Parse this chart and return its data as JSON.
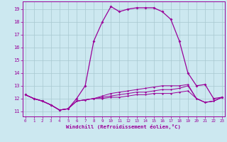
{
  "xlabel": "Windchill (Refroidissement éolien,°C)",
  "bg_color": "#cce8f0",
  "grid_color": "#a8c8d0",
  "line_color": "#990099",
  "x_ticks": [
    0,
    1,
    2,
    3,
    4,
    5,
    6,
    7,
    8,
    9,
    10,
    11,
    12,
    13,
    14,
    15,
    16,
    17,
    18,
    19,
    20,
    21,
    22,
    23
  ],
  "y_ticks": [
    11,
    12,
    13,
    14,
    15,
    16,
    17,
    18,
    19
  ],
  "xlim": [
    -0.3,
    23.3
  ],
  "ylim": [
    10.6,
    19.6
  ],
  "series1_y": [
    12.3,
    12.0,
    11.8,
    11.5,
    11.1,
    11.2,
    12.0,
    13.0,
    16.5,
    18.0,
    19.2,
    18.8,
    19.0,
    19.1,
    19.1,
    19.1,
    18.8,
    18.2,
    16.5,
    14.0,
    13.0,
    13.1,
    12.0,
    12.1
  ],
  "series2_y": [
    12.3,
    12.0,
    11.8,
    11.5,
    11.1,
    11.2,
    11.8,
    11.9,
    12.0,
    12.0,
    12.1,
    12.1,
    12.2,
    12.3,
    12.3,
    12.4,
    12.4,
    12.4,
    12.5,
    12.6,
    12.0,
    11.7,
    11.8,
    12.1
  ],
  "series3_y": [
    12.3,
    12.0,
    11.8,
    11.5,
    11.1,
    11.2,
    11.8,
    11.9,
    12.0,
    12.1,
    12.2,
    12.3,
    12.4,
    12.5,
    12.5,
    12.6,
    12.7,
    12.7,
    12.8,
    13.0,
    12.0,
    11.7,
    11.8,
    12.1
  ],
  "series4_y": [
    12.3,
    12.0,
    11.8,
    11.5,
    11.1,
    11.2,
    11.8,
    11.9,
    12.0,
    12.2,
    12.4,
    12.5,
    12.6,
    12.7,
    12.8,
    12.9,
    13.0,
    13.0,
    13.0,
    13.1,
    12.0,
    11.7,
    11.8,
    12.1
  ]
}
